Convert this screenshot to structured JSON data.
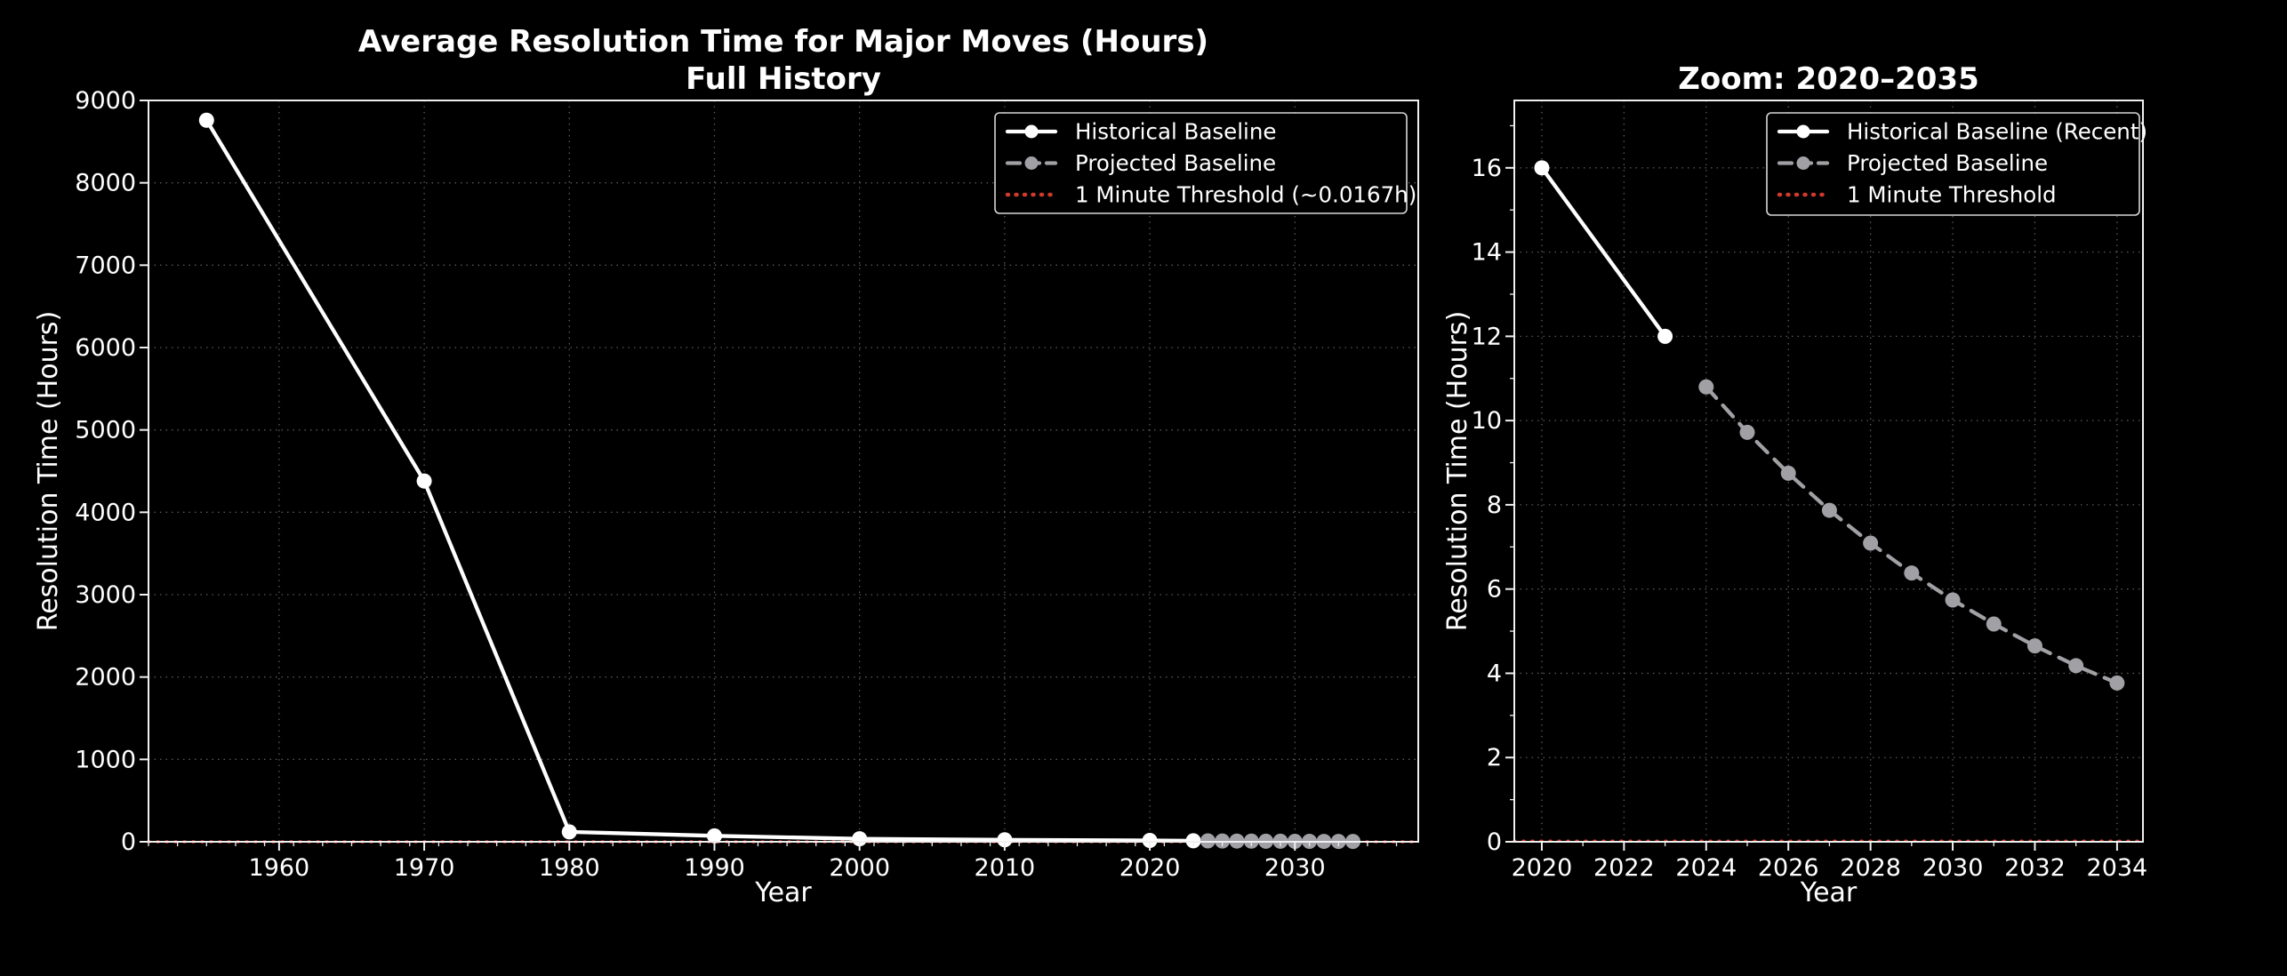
{
  "colors": {
    "background": "#000000",
    "text": "#ffffff",
    "grid": "#585858",
    "spine": "#f0f0f0",
    "historical": "#ffffff",
    "projected": "#a0a0a5",
    "threshold": "#d0392b"
  },
  "chart_data": [
    {
      "id": "full-history",
      "type": "line",
      "title": "Average Resolution Time for Major Moves (Hours)",
      "subtitle": "Full History",
      "xlabel": "Year",
      "ylabel": "Resolution Time (Hours)",
      "xlim": [
        1951,
        2038.5
      ],
      "ylim": [
        0,
        9000
      ],
      "xticks": [
        1960,
        1970,
        1980,
        1990,
        2000,
        2010,
        2020,
        2030
      ],
      "yticks": [
        0,
        1000,
        2000,
        3000,
        4000,
        5000,
        6000,
        7000,
        8000,
        9000
      ],
      "grid": true,
      "legend_position": "upper-right",
      "series": [
        {
          "name": "Historical Baseline",
          "color": "#ffffff",
          "line_style": "solid",
          "marker": "circle",
          "x": [
            1955,
            1970,
            1980,
            1990,
            2000,
            2010,
            2020,
            2023
          ],
          "y": [
            8760,
            4380,
            120,
            72,
            36,
            24,
            16,
            12
          ]
        },
        {
          "name": "Projected Baseline",
          "color": "#a0a0a5",
          "line_style": "dashed",
          "marker": "circle",
          "x": [
            2024,
            2025,
            2026,
            2027,
            2028,
            2029,
            2030,
            2031,
            2032,
            2033,
            2034
          ],
          "y": [
            10.8,
            9.72,
            8.75,
            7.87,
            7.09,
            6.38,
            5.74,
            5.17,
            4.65,
            4.18,
            3.77
          ]
        }
      ],
      "threshold": {
        "name": "1 Minute Threshold (~0.0167h)",
        "color": "#d0392b",
        "line_style": "dotted",
        "y": 0.0167
      }
    },
    {
      "id": "zoom-2020-2035",
      "type": "line",
      "title": "Zoom: 2020–2035",
      "xlabel": "Year",
      "ylabel": "Resolution Time (Hours)",
      "xlim": [
        2019.33,
        2034.63
      ],
      "ylim": [
        0,
        17.6
      ],
      "xticks": [
        2020,
        2022,
        2024,
        2026,
        2028,
        2030,
        2032,
        2034
      ],
      "yticks": [
        0,
        2,
        4,
        6,
        8,
        10,
        12,
        14,
        16
      ],
      "grid": true,
      "legend_position": "upper-right",
      "series": [
        {
          "name": "Historical Baseline (Recent)",
          "color": "#ffffff",
          "line_style": "solid",
          "marker": "circle",
          "x": [
            2020,
            2023
          ],
          "y": [
            16,
            12
          ]
        },
        {
          "name": "Projected Baseline",
          "color": "#a0a0a5",
          "line_style": "dashed",
          "marker": "circle",
          "x": [
            2024,
            2025,
            2026,
            2027,
            2028,
            2029,
            2030,
            2031,
            2032,
            2033,
            2034
          ],
          "y": [
            10.8,
            9.72,
            8.75,
            7.87,
            7.09,
            6.38,
            5.74,
            5.17,
            4.65,
            4.18,
            3.77
          ]
        }
      ],
      "threshold": {
        "name": "1 Minute Threshold",
        "color": "#d0392b",
        "line_style": "dotted",
        "y": 0.0167
      }
    }
  ]
}
